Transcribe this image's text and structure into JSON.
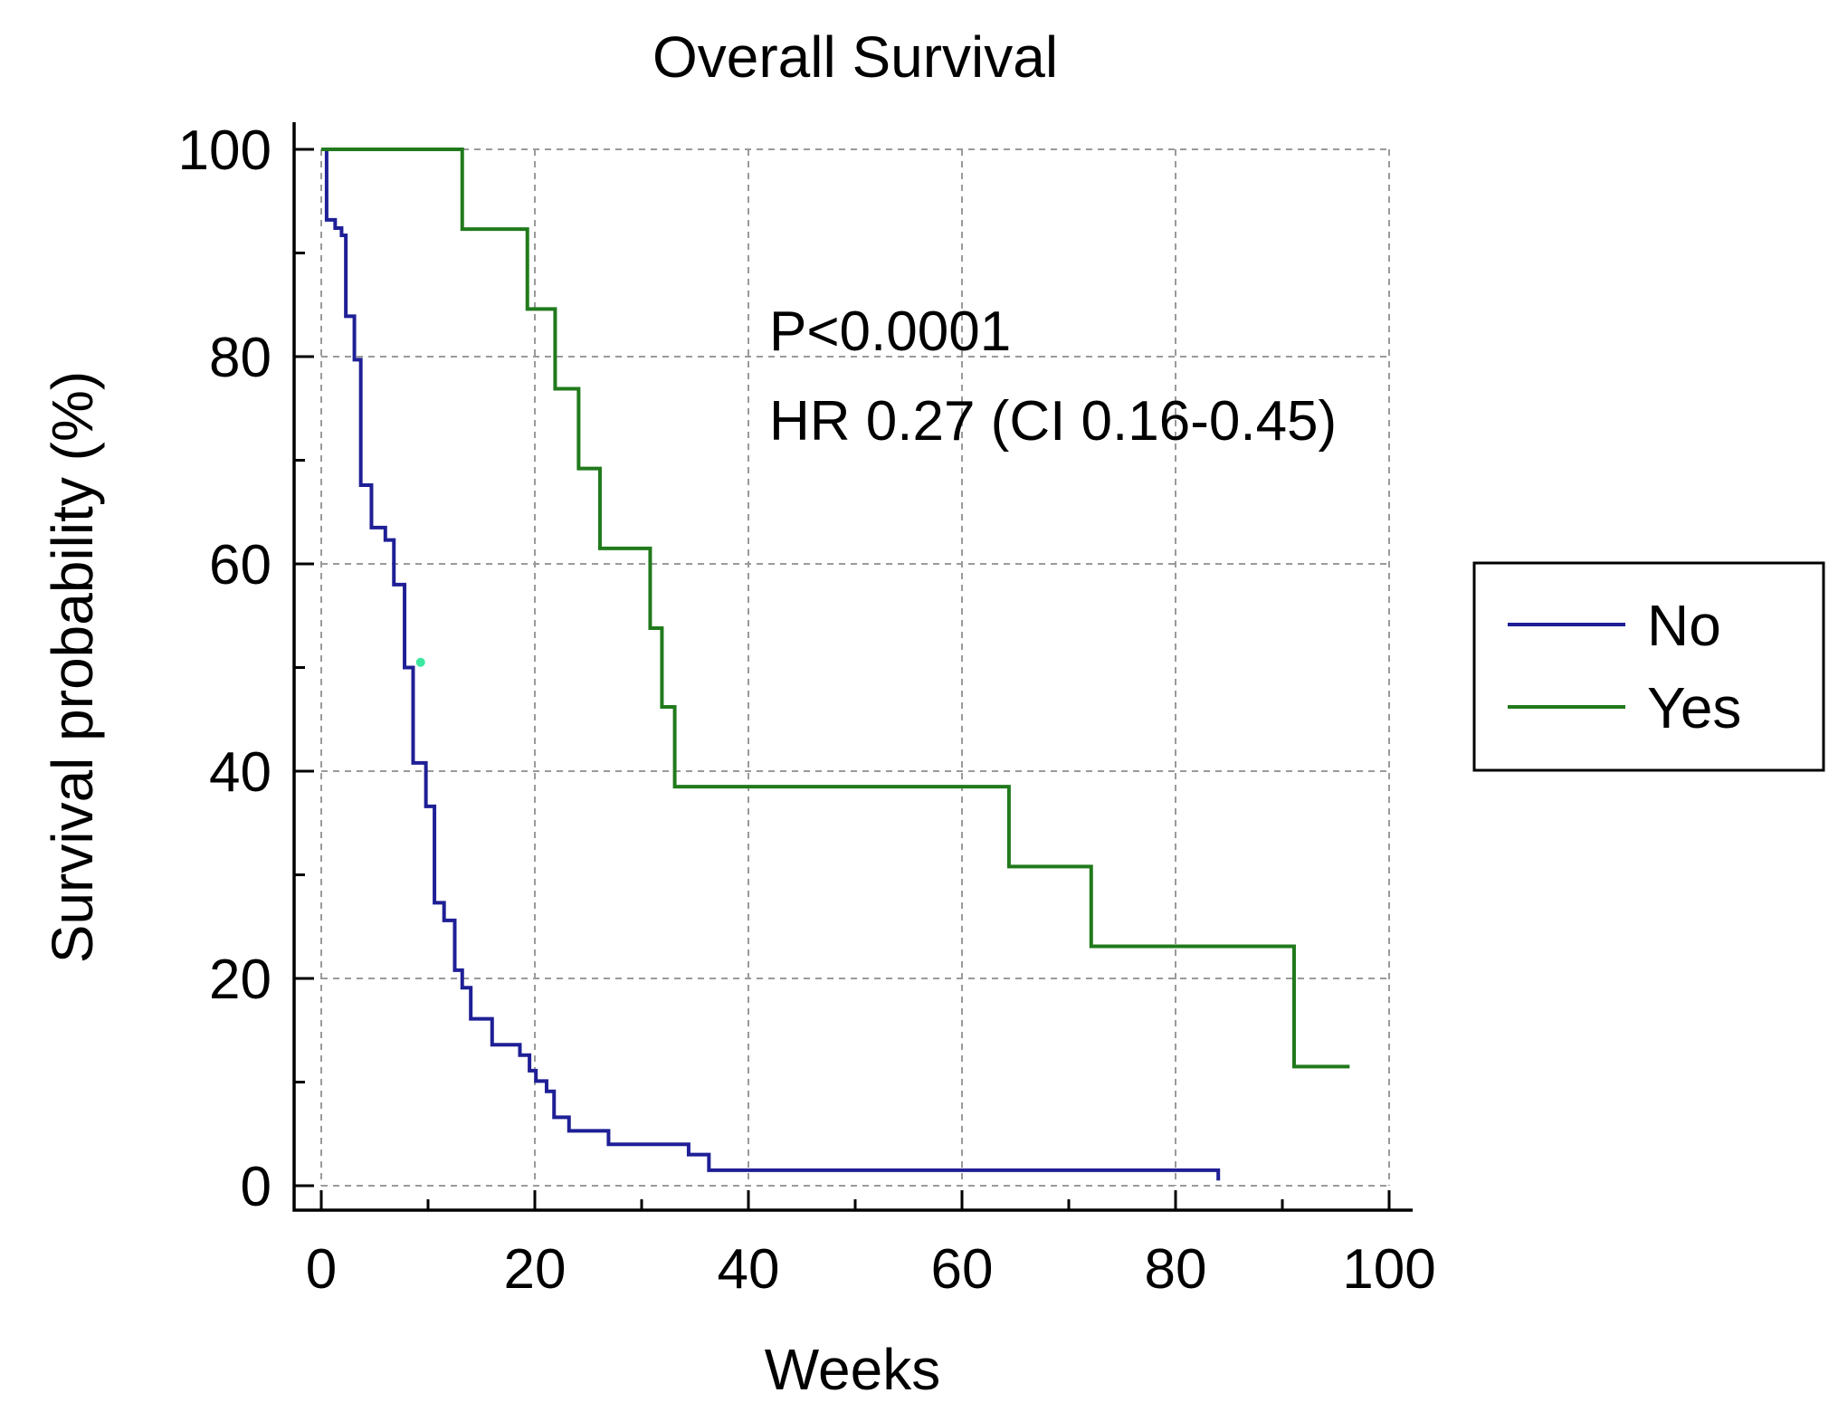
{
  "chart_data": {
    "type": "line",
    "subtype": "kaplan-meier-step",
    "title": "Overall Survival",
    "xlabel": "Weeks",
    "ylabel": "Survival probability (%)",
    "xlim": [
      0,
      100
    ],
    "ylim": [
      0,
      100
    ],
    "x_ticks": [
      0,
      20,
      40,
      60,
      80,
      100
    ],
    "y_ticks": [
      0,
      20,
      40,
      60,
      80,
      100
    ],
    "grid": true,
    "legend_position": "right",
    "annotations": [
      "P<0.0001",
      "HR 0.27 (CI 0.16-0.45)"
    ],
    "series": [
      {
        "name": "No",
        "color": "#1f1f96",
        "steps": [
          [
            0,
            100
          ],
          [
            0.5,
            93.2
          ],
          [
            1.3,
            92.4
          ],
          [
            1.9,
            91.7
          ],
          [
            2.3,
            83.9
          ],
          [
            3.1,
            79.7
          ],
          [
            3.7,
            67.6
          ],
          [
            4.7,
            63.5
          ],
          [
            6.0,
            62.3
          ],
          [
            6.8,
            58.0
          ],
          [
            7.8,
            50.0
          ],
          [
            8.6,
            40.8
          ],
          [
            9.8,
            36.6
          ],
          [
            10.6,
            27.3
          ],
          [
            11.5,
            25.6
          ],
          [
            12.5,
            20.8
          ],
          [
            13.2,
            19.1
          ],
          [
            14.0,
            16.1
          ],
          [
            16.0,
            13.6
          ],
          [
            18.6,
            12.6
          ],
          [
            19.5,
            11.1
          ],
          [
            20.1,
            10.1
          ],
          [
            21.1,
            9.1
          ],
          [
            21.8,
            6.6
          ],
          [
            23.2,
            5.3
          ],
          [
            26.9,
            4.0
          ],
          [
            34.4,
            3.0
          ],
          [
            36.3,
            1.5
          ],
          [
            84.0,
            0.5
          ]
        ],
        "censored": [
          [
            9.3,
            50.5
          ]
        ]
      },
      {
        "name": "Yes",
        "color": "#217a1c",
        "steps": [
          [
            0,
            100
          ],
          [
            13.2,
            92.3
          ],
          [
            19.3,
            84.6
          ],
          [
            21.9,
            76.9
          ],
          [
            24.1,
            69.2
          ],
          [
            26.1,
            61.5
          ],
          [
            30.8,
            53.8
          ],
          [
            31.9,
            46.2
          ],
          [
            33.1,
            38.5
          ],
          [
            64.4,
            30.8
          ],
          [
            72.1,
            23.1
          ],
          [
            91.1,
            11.5
          ],
          [
            96.3,
            11.5
          ]
        ]
      }
    ]
  }
}
